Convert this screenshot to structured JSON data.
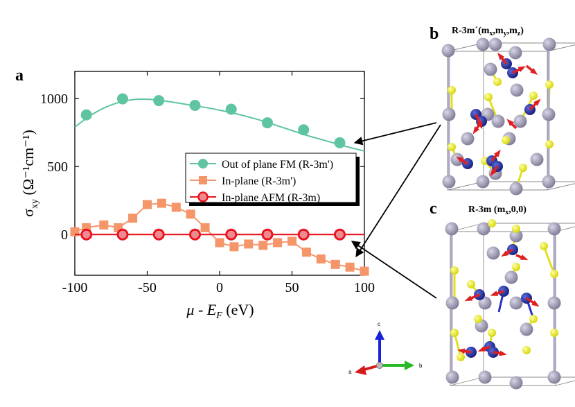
{
  "chart_data": {
    "type": "line",
    "panel_label": "a",
    "xlabel": "μ - E",
    "xlabel_sub": "F",
    "xlabel_unit": "(eV)",
    "ylabel": "σ",
    "ylabel_sub": "xy",
    "ylabel_unit": "(Ω⁻¹cm⁻¹)",
    "xlim": [
      -100,
      100
    ],
    "ylim": [
      -300,
      1200
    ],
    "xticks": [
      -100,
      -50,
      0,
      50,
      100
    ],
    "yticks": [
      0,
      500,
      1000
    ],
    "series": [
      {
        "name": "Out of plane FM (R-3m')",
        "color": "#5fc4a0",
        "marker": "circle",
        "curve_x": [
          -100,
          -90,
          -80,
          -70,
          -60,
          -50,
          -40,
          -30,
          -20,
          -10,
          0,
          10,
          20,
          30,
          40,
          50,
          60,
          70,
          80,
          90,
          100
        ],
        "curve_y": [
          790,
          870,
          930,
          970,
          992,
          995,
          985,
          970,
          952,
          935,
          915,
          892,
          865,
          835,
          800,
          765,
          730,
          700,
          670,
          640,
          615
        ],
        "x": [
          -92,
          -67,
          -42,
          -17,
          8,
          33,
          58,
          83
        ],
        "y": [
          880,
          998,
          985,
          950,
          922,
          822,
          770,
          675
        ]
      },
      {
        "name": "In-plane (R-3m')",
        "color": "#f5956a",
        "marker": "square",
        "x": [
          -100,
          -92,
          -80,
          -70,
          -60,
          -50,
          -40,
          -30,
          -20,
          -10,
          0,
          10,
          20,
          30,
          40,
          50,
          60,
          70,
          80,
          90,
          100
        ],
        "y": [
          20,
          50,
          70,
          50,
          120,
          220,
          230,
          200,
          150,
          50,
          -60,
          -90,
          -70,
          -80,
          -60,
          -50,
          -130,
          -180,
          -220,
          -240,
          -270
        ]
      },
      {
        "name": "In-plane AFM (R-3m)",
        "color": "#e8141e",
        "marker": "circle-open",
        "curve_x": [
          -100,
          100
        ],
        "curve_y": [
          0,
          0
        ],
        "x": [
          -92,
          -67,
          -42,
          -17,
          8,
          33,
          58,
          83
        ],
        "y": [
          0,
          0,
          0,
          0,
          0,
          0,
          0,
          0
        ]
      }
    ]
  },
  "panels": {
    "b": {
      "label": "b",
      "title": "R-3m´(mx,my,mz)"
    },
    "c": {
      "label": "c",
      "title": "R-3m (mx,0,0)"
    }
  },
  "axes_triad": {
    "a": "a",
    "b": "b",
    "c": "c"
  },
  "colors": {
    "te_atom": "#e8e82a",
    "mn_atom": "#1f2a9c",
    "bi_atom": "#9c98b4",
    "spin_arrow": "#e02020"
  }
}
